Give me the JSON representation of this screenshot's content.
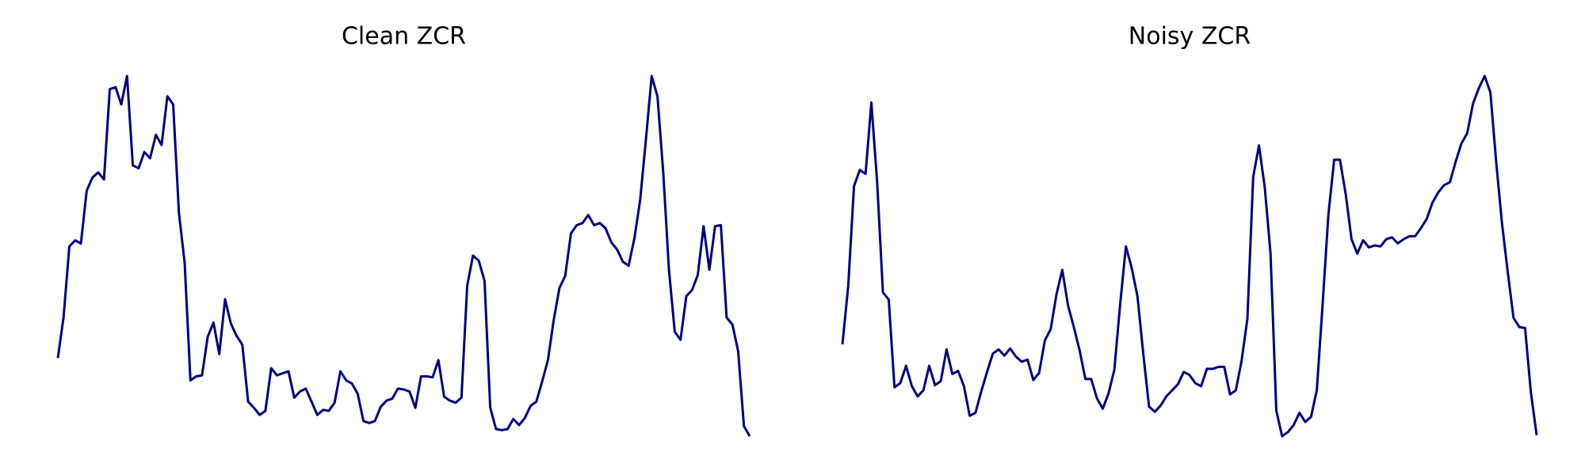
{
  "chart_data": [
    {
      "type": "line",
      "title": "Clean ZCR",
      "color": "#000080",
      "values": [
        77,
        118,
        187,
        193,
        190,
        242,
        255,
        260,
        253,
        342,
        344,
        327,
        355,
        267,
        264,
        280,
        274,
        297,
        287,
        335,
        327,
        220,
        171,
        55,
        59,
        60,
        98,
        112,
        81,
        135,
        111,
        99,
        90,
        34,
        28,
        21,
        25,
        67,
        60,
        62,
        64,
        38,
        44,
        47,
        34,
        21,
        26,
        25,
        33,
        64,
        55,
        52,
        42,
        15,
        13,
        15,
        29,
        35,
        37,
        47,
        46,
        44,
        28,
        59,
        59,
        58,
        75,
        39,
        35,
        33,
        38,
        148,
        178,
        173,
        153,
        28,
        7,
        6,
        7,
        17,
        11,
        18,
        30,
        34,
        54,
        75,
        114,
        146,
        158,
        200,
        208,
        210,
        218,
        208,
        210,
        205,
        191,
        184,
        172,
        168,
        195,
        233,
        292,
        355,
        335,
        260,
        164,
        103,
        95,
        138,
        144,
        159,
        207,
        164,
        207,
        208,
        117,
        110,
        84,
        10,
        0
      ]
    },
    {
      "type": "line",
      "title": "Noisy ZCR",
      "color": "#000080",
      "values": [
        91,
        148,
        246,
        262,
        258,
        328,
        250,
        142,
        135,
        49,
        53,
        70,
        50,
        40,
        46,
        70,
        51,
        55,
        86,
        62,
        65,
        50,
        21,
        24,
        45,
        64,
        82,
        86,
        80,
        87,
        79,
        74,
        76,
        56,
        63,
        95,
        106,
        140,
        164,
        129,
        108,
        85,
        57,
        57,
        38,
        28,
        43,
        66,
        130,
        187,
        166,
        138,
        82,
        30,
        25,
        31,
        40,
        46,
        52,
        64,
        61,
        53,
        50,
        67,
        67,
        69,
        69,
        42,
        46,
        75,
        116,
        255,
        286,
        245,
        180,
        26,
        1,
        5,
        12,
        24,
        15,
        20,
        46,
        130,
        218,
        272,
        272,
        238,
        194,
        180,
        193,
        186,
        188,
        187,
        194,
        196,
        190,
        194,
        197,
        197,
        205,
        214,
        230,
        240,
        247,
        250,
        270,
        288,
        298,
        327,
        342,
        354,
        338,
        270,
        210,
        162,
        117,
        108,
        107,
        44,
        2
      ]
    }
  ]
}
